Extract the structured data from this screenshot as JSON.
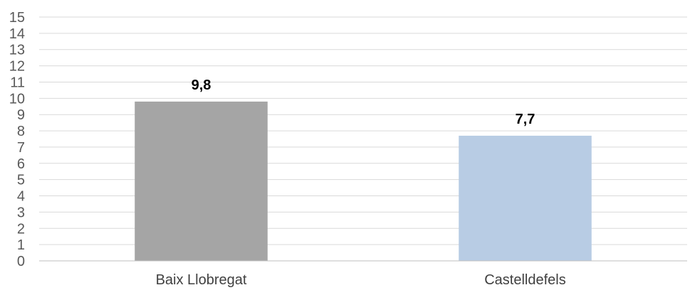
{
  "chart_data": {
    "type": "bar",
    "categories": [
      "Baix Llobregat",
      "Castelldefels"
    ],
    "values": [
      9.8,
      7.7
    ],
    "value_labels": [
      "9,8",
      "7,7"
    ],
    "colors": [
      "#a5a5a5",
      "#b8cce4"
    ],
    "ylim": [
      0,
      15
    ],
    "y_ticks": [
      "0",
      "1",
      "2",
      "3",
      "4",
      "5",
      "6",
      "7",
      "8",
      "9",
      "10",
      "11",
      "12",
      "13",
      "14",
      "15"
    ],
    "grid": true,
    "legend": "none",
    "title": "",
    "xlabel": "",
    "ylabel": ""
  }
}
